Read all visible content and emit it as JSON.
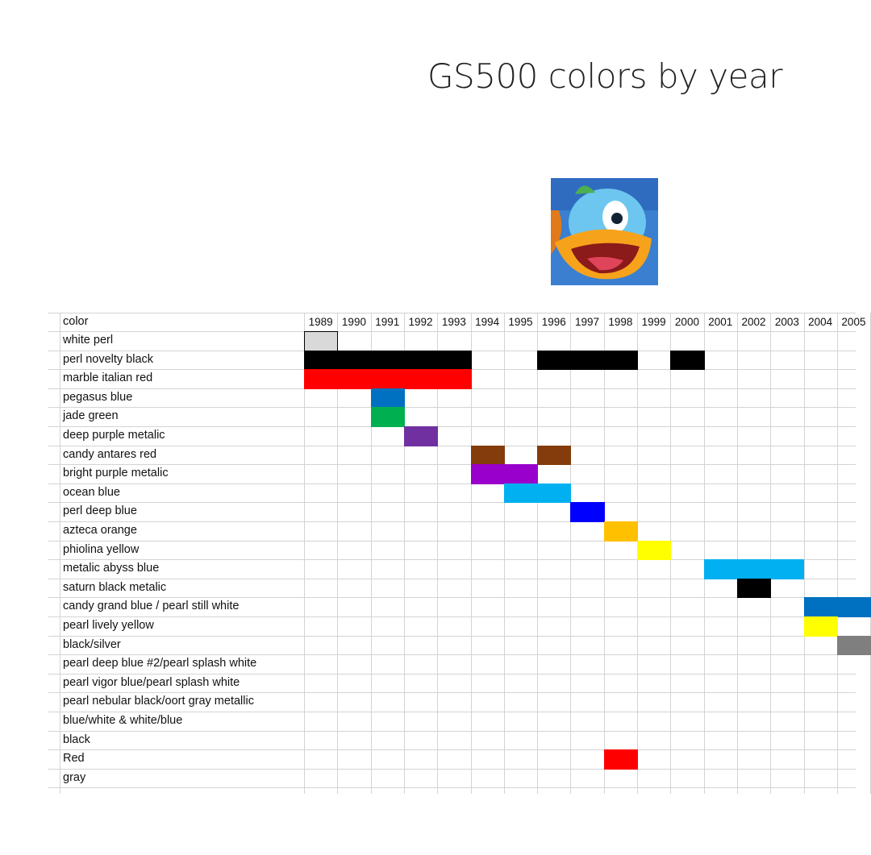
{
  "title": "GS500 colors by year",
  "logo": {
    "icon": "cartoon-bird-icon"
  },
  "chart_data": {
    "type": "table",
    "title": "GS500 colors by year",
    "header_label": "color",
    "years": [
      "1989",
      "1990",
      "1991",
      "1992",
      "1993",
      "1994",
      "1995",
      "1996",
      "1997",
      "1998",
      "1999",
      "2000",
      "2001",
      "2002",
      "2003",
      "2004",
      "2005"
    ],
    "rows": [
      {
        "name": "white perl",
        "spans": [
          {
            "years": [
              1989
            ],
            "fill": "#d9d9d9",
            "outlined": true
          }
        ]
      },
      {
        "name": "perl novelty black",
        "spans": [
          {
            "years": [
              1989,
              1990,
              1991,
              1992,
              1993
            ],
            "fill": "#000000"
          },
          {
            "years": [
              1996,
              1997,
              1998
            ],
            "fill": "#000000"
          },
          {
            "years": [
              2000
            ],
            "fill": "#000000"
          }
        ]
      },
      {
        "name": "marble italian red",
        "spans": [
          {
            "years": [
              1989,
              1990,
              1991,
              1992,
              1993
            ],
            "fill": "#ff0000"
          }
        ]
      },
      {
        "name": "pegasus blue",
        "spans": [
          {
            "years": [
              1991
            ],
            "fill": "#0070c0"
          }
        ]
      },
      {
        "name": "jade green",
        "spans": [
          {
            "years": [
              1991
            ],
            "fill": "#00b050"
          }
        ]
      },
      {
        "name": "deep purple metalic",
        "spans": [
          {
            "years": [
              1992
            ],
            "fill": "#7030a0"
          }
        ]
      },
      {
        "name": "candy antares red",
        "spans": [
          {
            "years": [
              1994
            ],
            "fill": "#843c0c"
          },
          {
            "years": [
              1996
            ],
            "fill": "#843c0c"
          }
        ]
      },
      {
        "name": "bright purple metalic",
        "spans": [
          {
            "years": [
              1994,
              1995
            ],
            "fill": "#9900cc"
          }
        ]
      },
      {
        "name": "ocean blue",
        "spans": [
          {
            "years": [
              1995,
              1996
            ],
            "fill": "#00b0f0"
          }
        ]
      },
      {
        "name": "perl deep blue",
        "spans": [
          {
            "years": [
              1997
            ],
            "fill": "#0000ff"
          }
        ]
      },
      {
        "name": "azteca orange",
        "spans": [
          {
            "years": [
              1998
            ],
            "fill": "#ffc000"
          }
        ]
      },
      {
        "name": "phiolina yellow",
        "spans": [
          {
            "years": [
              1999
            ],
            "fill": "#ffff00"
          }
        ]
      },
      {
        "name": "metalic abyss blue",
        "spans": [
          {
            "years": [
              2001,
              2002,
              2003
            ],
            "fill": "#00b0f0"
          }
        ]
      },
      {
        "name": "saturn black metalic",
        "spans": [
          {
            "years": [
              2002
            ],
            "fill": "#000000"
          }
        ]
      },
      {
        "name": "candy grand blue / pearl still white",
        "spans": [
          {
            "years": [
              2004,
              2005
            ],
            "fill": "#0070c0"
          }
        ]
      },
      {
        "name": "pearl lively yellow",
        "spans": [
          {
            "years": [
              2004
            ],
            "fill": "#ffff00"
          }
        ]
      },
      {
        "name": "black/silver",
        "spans": [
          {
            "years": [
              2005
            ],
            "fill": "#7f7f7f"
          }
        ]
      },
      {
        "name": "pearl deep blue #2/pearl splash white",
        "spans": []
      },
      {
        "name": "pearl vigor blue/pearl splash white",
        "spans": []
      },
      {
        "name": "pearl nebular black/oort gray metallic",
        "spans": []
      },
      {
        "name": "blue/white & white/blue",
        "spans": []
      },
      {
        "name": "black",
        "spans": []
      },
      {
        "name": "Red",
        "spans": [
          {
            "years": [
              1998
            ],
            "fill": "#ff0000"
          }
        ]
      },
      {
        "name": "gray",
        "spans": []
      }
    ]
  }
}
